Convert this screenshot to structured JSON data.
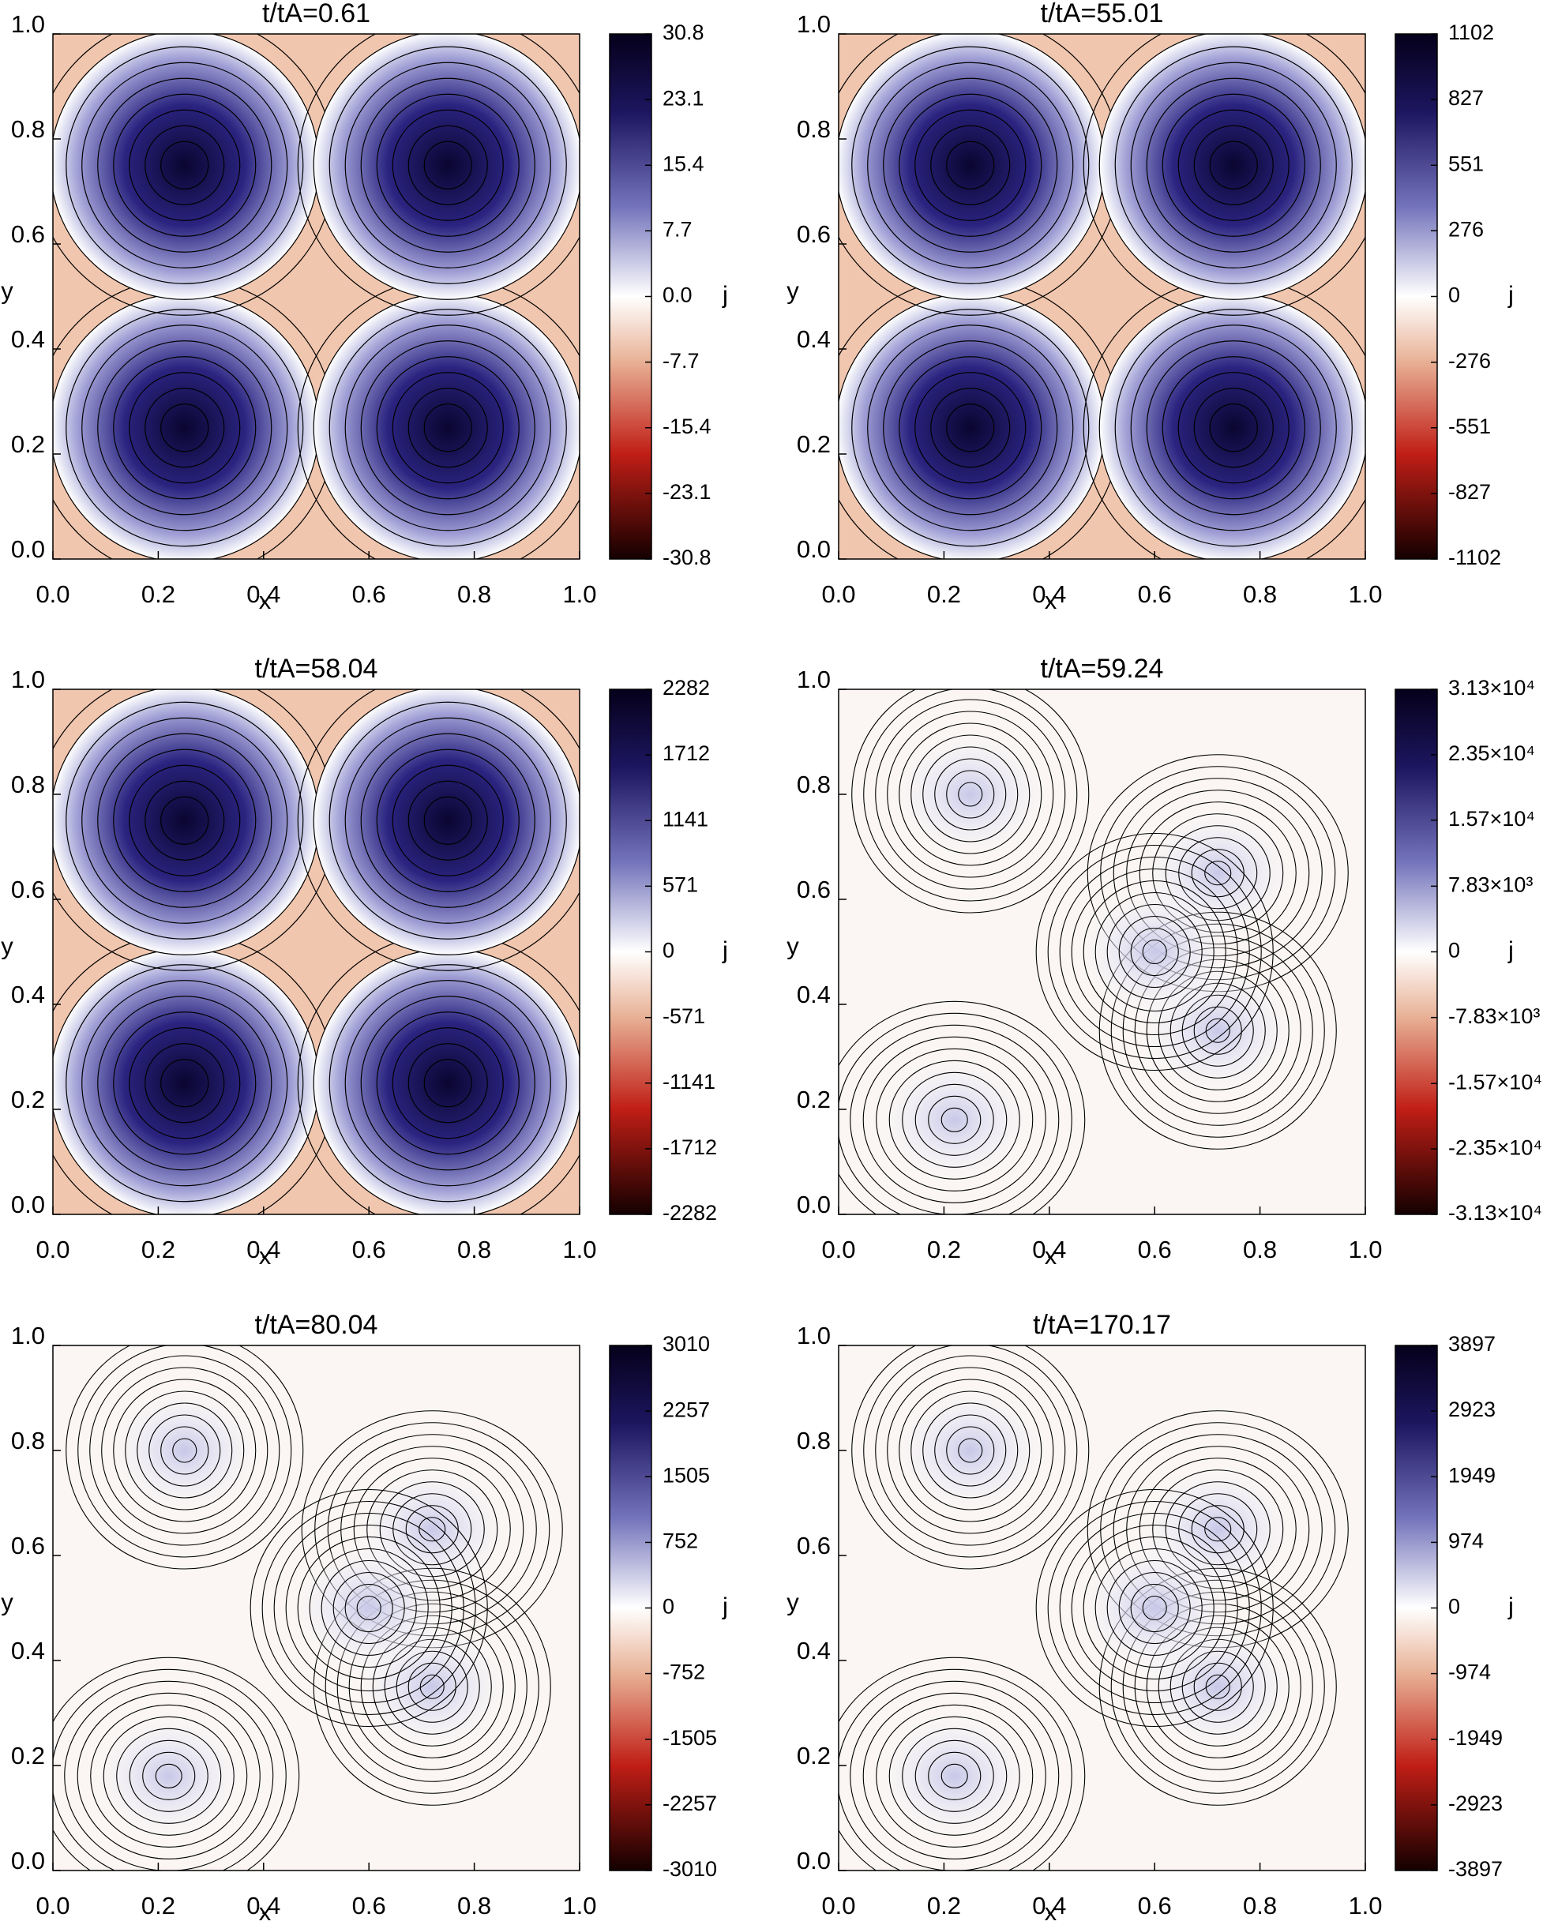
{
  "chart_data": [
    {
      "type": "heatmap",
      "title": "t/tA=0.61",
      "xlabel": "x",
      "ylabel": "y",
      "zlabel": "j",
      "xlim": [
        0,
        1
      ],
      "ylim": [
        0,
        1
      ],
      "xticks": [
        {
          "value": 0,
          "label": "0.0"
        },
        {
          "value": 0.2,
          "label": "0.2"
        },
        {
          "value": 0.4,
          "label": "0.4"
        },
        {
          "value": 0.6,
          "label": "0.6"
        },
        {
          "value": 0.8,
          "label": "0.8"
        },
        {
          "value": 1,
          "label": "1.0"
        }
      ],
      "yticks": [
        {
          "value": 0,
          "label": "0.0"
        },
        {
          "value": 0.2,
          "label": "0.2"
        },
        {
          "value": 0.4,
          "label": "0.4"
        },
        {
          "value": 0.6,
          "label": "0.6"
        },
        {
          "value": 0.8,
          "label": "0.8"
        },
        {
          "value": 1,
          "label": "1.0"
        }
      ],
      "zlim": [
        -30.8,
        30.8
      ],
      "zticks": [
        30.8,
        23.1,
        15.4,
        7.7,
        {
          "value": 0,
          "label": "0.0"
        },
        -7.7,
        -15.4,
        -23.1,
        -30.8
      ]
    },
    {
      "type": "heatmap",
      "title": "t/tA=55.01",
      "xlabel": "x",
      "ylabel": "y",
      "zlabel": "j",
      "xlim": [
        0,
        1
      ],
      "ylim": [
        0,
        1
      ],
      "xticks": [
        {
          "value": 0,
          "label": "0.0"
        },
        {
          "value": 0.2,
          "label": "0.2"
        },
        {
          "value": 0.4,
          "label": "0.4"
        },
        {
          "value": 0.6,
          "label": "0.6"
        },
        {
          "value": 0.8,
          "label": "0.8"
        },
        {
          "value": 1,
          "label": "1.0"
        }
      ],
      "yticks": [
        {
          "value": 0,
          "label": "0.0"
        },
        {
          "value": 0.2,
          "label": "0.2"
        },
        {
          "value": 0.4,
          "label": "0.4"
        },
        {
          "value": 0.6,
          "label": "0.6"
        },
        {
          "value": 0.8,
          "label": "0.8"
        },
        {
          "value": 1,
          "label": "1.0"
        }
      ],
      "zlim": [
        -1102,
        1102
      ],
      "zticks": [
        1102,
        827,
        551,
        276,
        0,
        -276,
        -551,
        -827,
        -1102
      ]
    },
    {
      "type": "heatmap",
      "title": "t/tA=58.04",
      "xlabel": "x",
      "ylabel": "y",
      "zlabel": "j",
      "xlim": [
        0,
        1
      ],
      "ylim": [
        0,
        1
      ],
      "xticks": [
        {
          "value": 0,
          "label": "0.0"
        },
        {
          "value": 0.2,
          "label": "0.2"
        },
        {
          "value": 0.4,
          "label": "0.4"
        },
        {
          "value": 0.6,
          "label": "0.6"
        },
        {
          "value": 0.8,
          "label": "0.8"
        },
        {
          "value": 1,
          "label": "1.0"
        }
      ],
      "yticks": [
        {
          "value": 0,
          "label": "0.0"
        },
        {
          "value": 0.2,
          "label": "0.2"
        },
        {
          "value": 0.4,
          "label": "0.4"
        },
        {
          "value": 0.6,
          "label": "0.6"
        },
        {
          "value": 0.8,
          "label": "0.8"
        },
        {
          "value": 1,
          "label": "1.0"
        }
      ],
      "zlim": [
        -2282,
        2282
      ],
      "zticks": [
        2282,
        1712,
        1141,
        571,
        0,
        -571,
        -1141,
        -1712,
        -2282
      ]
    },
    {
      "type": "heatmap",
      "title": "t/tA=59.24",
      "xlabel": "x",
      "ylabel": "y",
      "zlabel": "j",
      "xlim": [
        0,
        1
      ],
      "ylim": [
        0,
        1
      ],
      "xticks": [
        {
          "value": 0,
          "label": "0.0"
        },
        {
          "value": 0.2,
          "label": "0.2"
        },
        {
          "value": 0.4,
          "label": "0.4"
        },
        {
          "value": 0.6,
          "label": "0.6"
        },
        {
          "value": 0.8,
          "label": "0.8"
        },
        {
          "value": 1,
          "label": "1.0"
        }
      ],
      "yticks": [
        {
          "value": 0,
          "label": "0.0"
        },
        {
          "value": 0.2,
          "label": "0.2"
        },
        {
          "value": 0.4,
          "label": "0.4"
        },
        {
          "value": 0.6,
          "label": "0.6"
        },
        {
          "value": 0.8,
          "label": "0.8"
        },
        {
          "value": 1,
          "label": "1.0"
        }
      ],
      "zlim": [
        -31300,
        31300
      ],
      "zticks": [
        {
          "value": 31300,
          "label": "3.13×10⁴"
        },
        {
          "value": 23500,
          "label": "2.35×10⁴"
        },
        {
          "value": 15700,
          "label": "1.57×10⁴"
        },
        {
          "value": 7830,
          "label": "7.83×10³"
        },
        0,
        {
          "value": -7830,
          "label": "-7.83×10³"
        },
        {
          "value": -15700,
          "label": "-1.57×10⁴"
        },
        {
          "value": -23500,
          "label": "-2.35×10⁴"
        },
        {
          "value": -31300,
          "label": "-3.13×10⁴"
        }
      ]
    },
    {
      "type": "heatmap",
      "title": "t/tA=80.04",
      "xlabel": "x",
      "ylabel": "y",
      "zlabel": "j",
      "xlim": [
        0,
        1
      ],
      "ylim": [
        0,
        1
      ],
      "xticks": [
        {
          "value": 0,
          "label": "0.0"
        },
        {
          "value": 0.2,
          "label": "0.2"
        },
        {
          "value": 0.4,
          "label": "0.4"
        },
        {
          "value": 0.6,
          "label": "0.6"
        },
        {
          "value": 0.8,
          "label": "0.8"
        },
        {
          "value": 1,
          "label": "1.0"
        }
      ],
      "yticks": [
        {
          "value": 0,
          "label": "0.0"
        },
        {
          "value": 0.2,
          "label": "0.2"
        },
        {
          "value": 0.4,
          "label": "0.4"
        },
        {
          "value": 0.6,
          "label": "0.6"
        },
        {
          "value": 0.8,
          "label": "0.8"
        },
        {
          "value": 1,
          "label": "1.0"
        }
      ],
      "zlim": [
        -3010,
        3010
      ],
      "zticks": [
        3010,
        2257,
        1505,
        752,
        0,
        -752,
        -1505,
        -2257,
        -3010
      ]
    },
    {
      "type": "heatmap",
      "title": "t/tA=170.17",
      "xlabel": "x",
      "ylabel": "y",
      "zlabel": "j",
      "xlim": [
        0,
        1
      ],
      "ylim": [
        0,
        1
      ],
      "xticks": [
        {
          "value": 0,
          "label": "0.0"
        },
        {
          "value": 0.2,
          "label": "0.2"
        },
        {
          "value": 0.4,
          "label": "0.4"
        },
        {
          "value": 0.6,
          "label": "0.6"
        },
        {
          "value": 0.8,
          "label": "0.8"
        },
        {
          "value": 1,
          "label": "1.0"
        }
      ],
      "yticks": [
        {
          "value": 0,
          "label": "0.0"
        },
        {
          "value": 0.2,
          "label": "0.2"
        },
        {
          "value": 0.4,
          "label": "0.4"
        },
        {
          "value": 0.6,
          "label": "0.6"
        },
        {
          "value": 0.8,
          "label": "0.8"
        },
        {
          "value": 1,
          "label": "1.0"
        }
      ],
      "zlim": [
        -3897,
        3897
      ],
      "zticks": [
        3897,
        2923,
        1949,
        974,
        0,
        -974,
        -1949,
        -2923,
        -3897
      ]
    }
  ]
}
